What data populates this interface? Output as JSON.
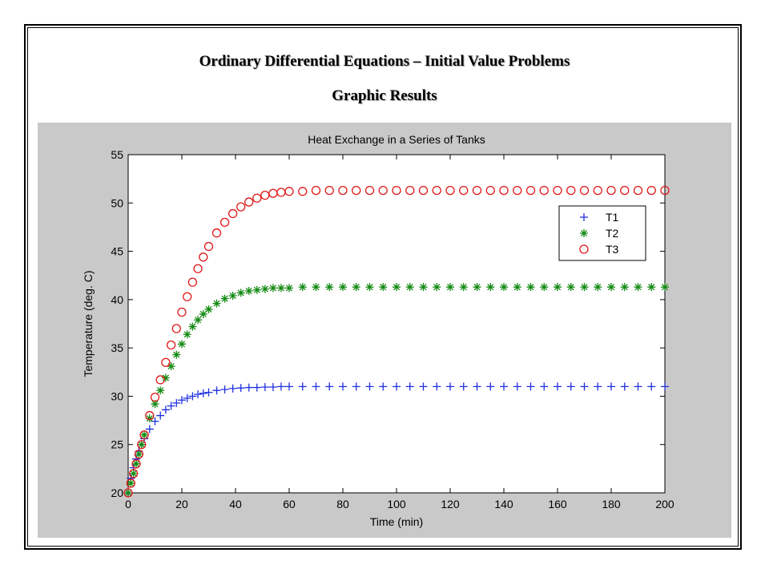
{
  "slide": {
    "title": "Ordinary Differential Equations – Initial Value Problems",
    "subtitle": "Graphic Results"
  },
  "colors": {
    "panel_background": "#c9c9c9",
    "plot_background": "#ffffff",
    "T1": "#1f2fe0",
    "T2": "#138a13",
    "T3": "#e01818"
  },
  "chart_data": {
    "type": "scatter",
    "title": "Heat Exchange in a Series of Tanks",
    "xlabel": "Time (min)",
    "ylabel": "Temperature (deg. C)",
    "xlim": [
      0,
      200
    ],
    "ylim": [
      20,
      55
    ],
    "xticks": [
      0,
      20,
      40,
      60,
      80,
      100,
      120,
      140,
      160,
      180,
      200
    ],
    "yticks": [
      20,
      25,
      30,
      35,
      40,
      45,
      50,
      55
    ],
    "grid": false,
    "legend_position": "top-right",
    "x": [
      0,
      1,
      2,
      3,
      4,
      5,
      6,
      8,
      10,
      12,
      14,
      16,
      18,
      20,
      22,
      24,
      26,
      28,
      30,
      33,
      36,
      39,
      42,
      45,
      48,
      51,
      54,
      57,
      60,
      65,
      70,
      75,
      80,
      85,
      90,
      95,
      100,
      105,
      110,
      115,
      120,
      125,
      130,
      135,
      140,
      145,
      150,
      155,
      160,
      165,
      170,
      175,
      180,
      185,
      190,
      195,
      200
    ],
    "series": [
      {
        "name": "T1",
        "marker": "plus",
        "values": [
          20.0,
          21.5,
          22.6,
          23.5,
          24.3,
          25.0,
          25.6,
          26.6,
          27.4,
          28.0,
          28.6,
          29.0,
          29.3,
          29.6,
          29.8,
          30.0,
          30.2,
          30.3,
          30.4,
          30.6,
          30.7,
          30.8,
          30.85,
          30.9,
          30.9,
          30.95,
          30.95,
          31.0,
          31.0,
          31.0,
          31.0,
          31.0,
          31.0,
          31.0,
          31.0,
          31.0,
          31.0,
          31.0,
          31.0,
          31.0,
          31.0,
          31.0,
          31.0,
          31.0,
          31.0,
          31.0,
          31.0,
          31.0,
          31.0,
          31.0,
          31.0,
          31.0,
          31.0,
          31.0,
          31.0,
          31.0,
          31.0
        ]
      },
      {
        "name": "T2",
        "marker": "star",
        "values": [
          20.0,
          21.0,
          22.0,
          23.0,
          24.0,
          25.0,
          26.0,
          27.7,
          29.2,
          30.6,
          31.9,
          33.1,
          34.3,
          35.4,
          36.4,
          37.2,
          37.9,
          38.5,
          39.0,
          39.6,
          40.1,
          40.4,
          40.7,
          40.9,
          41.0,
          41.1,
          41.2,
          41.2,
          41.2,
          41.3,
          41.3,
          41.3,
          41.3,
          41.3,
          41.3,
          41.3,
          41.3,
          41.3,
          41.3,
          41.3,
          41.3,
          41.3,
          41.3,
          41.3,
          41.3,
          41.3,
          41.3,
          41.3,
          41.3,
          41.3,
          41.3,
          41.3,
          41.3,
          41.3,
          41.3,
          41.3,
          41.3
        ]
      },
      {
        "name": "T3",
        "marker": "circle",
        "values": [
          20.0,
          21.0,
          22.0,
          23.0,
          24.0,
          25.0,
          26.0,
          28.0,
          29.9,
          31.7,
          33.5,
          35.3,
          37.0,
          38.7,
          40.3,
          41.8,
          43.2,
          44.4,
          45.5,
          46.9,
          48.0,
          48.9,
          49.6,
          50.1,
          50.5,
          50.8,
          51.0,
          51.1,
          51.2,
          51.2,
          51.3,
          51.3,
          51.3,
          51.3,
          51.3,
          51.3,
          51.3,
          51.3,
          51.3,
          51.3,
          51.3,
          51.3,
          51.3,
          51.3,
          51.3,
          51.3,
          51.3,
          51.3,
          51.3,
          51.3,
          51.3,
          51.3,
          51.3,
          51.3,
          51.3,
          51.3,
          51.3
        ]
      }
    ]
  }
}
